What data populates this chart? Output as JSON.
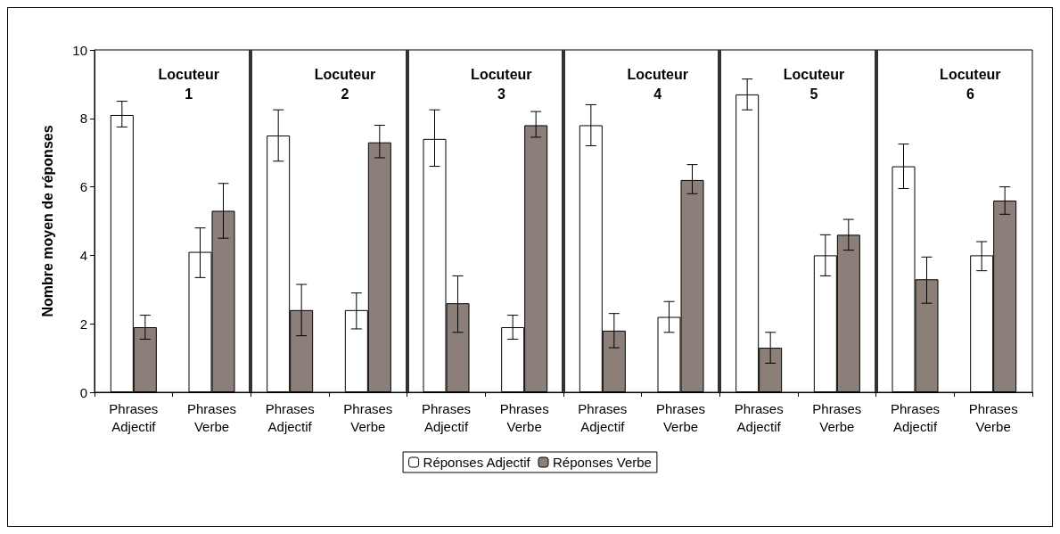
{
  "chart_data": {
    "type": "bar",
    "ylabel": "Nombre moyen de réponses",
    "categories": [
      "Phrases\nAdjectif",
      "Phrases\nVerbe",
      "Phrases\nAdjectif",
      "Phrases\nVerbe",
      "Phrases\nAdjectif",
      "Phrases\nVerbe",
      "Phrases\nAdjectif",
      "Phrases\nVerbe",
      "Phrases\nAdjectif",
      "Phrases\nVerbe",
      "Phrases\nAdjectif",
      "Phrases\nVerbe"
    ],
    "series": [
      {
        "name": "Réponses Adjectif",
        "color": "#ffffff",
        "values": [
          8.1,
          4.1,
          7.5,
          2.4,
          7.4,
          1.9,
          7.8,
          2.2,
          8.7,
          4.0,
          6.6,
          4.0
        ],
        "errors": [
          [
            7.75,
            8.5
          ],
          [
            3.35,
            4.8
          ],
          [
            6.75,
            8.25
          ],
          [
            1.85,
            2.9
          ],
          [
            6.6,
            8.25
          ],
          [
            1.55,
            2.25
          ],
          [
            7.2,
            8.4
          ],
          [
            1.75,
            2.65
          ],
          [
            8.25,
            9.15
          ],
          [
            3.4,
            4.6
          ],
          [
            5.95,
            7.25
          ],
          [
            3.55,
            4.4
          ]
        ]
      },
      {
        "name": "Réponses Verbe",
        "color": "#8c7f7a",
        "values": [
          1.9,
          5.3,
          2.4,
          7.3,
          2.6,
          7.8,
          1.8,
          6.2,
          1.3,
          4.6,
          3.3,
          5.6
        ],
        "errors": [
          [
            1.55,
            2.25
          ],
          [
            4.5,
            6.1
          ],
          [
            1.65,
            3.15
          ],
          [
            6.85,
            7.8
          ],
          [
            1.75,
            3.4
          ],
          [
            7.45,
            8.2
          ],
          [
            1.3,
            2.3
          ],
          [
            5.8,
            6.65
          ],
          [
            0.85,
            1.75
          ],
          [
            4.15,
            5.05
          ],
          [
            2.6,
            3.95
          ],
          [
            5.2,
            6.0
          ]
        ]
      }
    ],
    "annotations": [
      "Locuteur\n1",
      "Locuteur\n2",
      "Locuteur\n3",
      "Locuteur\n4",
      "Locuteur\n5",
      "Locuteur\n6"
    ],
    "ylim": [
      0,
      10
    ],
    "yticks": [
      0,
      2,
      4,
      6,
      8,
      10
    ],
    "grid": false,
    "legend": "bottom"
  }
}
